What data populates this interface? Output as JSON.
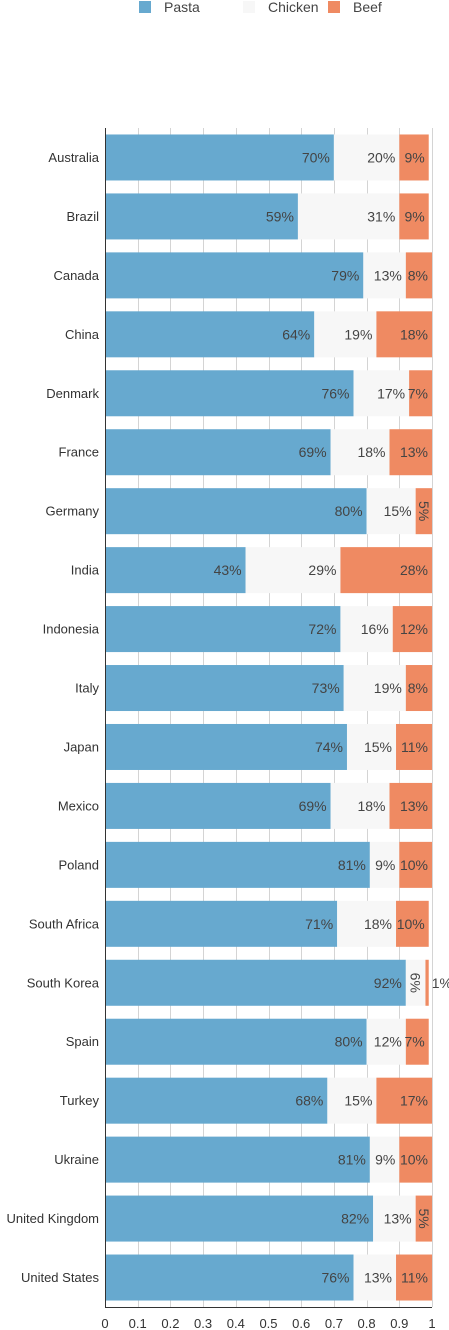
{
  "chart_data": {
    "type": "bar",
    "orientation": "horizontal",
    "stacked": true,
    "categories": [
      "Australia",
      "Brazil",
      "Canada",
      "China",
      "Denmark",
      "France",
      "Germany",
      "India",
      "Indonesia",
      "Italy",
      "Japan",
      "Mexico",
      "Poland",
      "South Africa",
      "South Korea",
      "Spain",
      "Turkey",
      "Ukraine",
      "United Kingdom",
      "United States"
    ],
    "series": [
      {
        "name": "Pasta",
        "color": "#67a9cf",
        "values": [
          0.7,
          0.59,
          0.79,
          0.64,
          0.76,
          0.69,
          0.8,
          0.43,
          0.72,
          0.73,
          0.74,
          0.69,
          0.81,
          0.71,
          0.92,
          0.8,
          0.68,
          0.81,
          0.82,
          0.76
        ],
        "labels": [
          "70%",
          "59%",
          "79%",
          "64%",
          "76%",
          "69%",
          "80%",
          "43%",
          "72%",
          "73%",
          "74%",
          "69%",
          "81%",
          "71%",
          "92%",
          "80%",
          "68%",
          "81%",
          "82%",
          "76%"
        ]
      },
      {
        "name": "Chicken",
        "color": "#f7f7f7",
        "values": [
          0.2,
          0.31,
          0.13,
          0.19,
          0.17,
          0.18,
          0.15,
          0.29,
          0.16,
          0.19,
          0.15,
          0.18,
          0.09,
          0.18,
          0.06,
          0.12,
          0.15,
          0.09,
          0.13,
          0.13
        ],
        "labels": [
          "20%",
          "31%",
          "13%",
          "19%",
          "17%",
          "18%",
          "15%",
          "29%",
          "16%",
          "19%",
          "15%",
          "18%",
          "9%",
          "18%",
          "6%",
          "12%",
          "15%",
          "9%",
          "13%",
          "13%"
        ]
      },
      {
        "name": "Beef",
        "color": "#ef8a62",
        "values": [
          0.09,
          0.09,
          0.08,
          0.18,
          0.07,
          0.13,
          0.05,
          0.28,
          0.12,
          0.08,
          0.11,
          0.13,
          0.1,
          0.1,
          0.01,
          0.07,
          0.17,
          0.1,
          0.05,
          0.11
        ],
        "labels": [
          "9%",
          "9%",
          "8%",
          "18%",
          "7%",
          "13%",
          "5%",
          "28%",
          "12%",
          "8%",
          "11%",
          "13%",
          "10%",
          "10%",
          "1%",
          "7%",
          "17%",
          "10%",
          "5%",
          "11%"
        ]
      }
    ],
    "xlim": [
      0,
      1
    ],
    "xticks": [
      "0",
      "0.1",
      "0.2",
      "0.3",
      "0.4",
      "0.5",
      "0.6",
      "0.7",
      "0.8",
      "0.9",
      "1"
    ],
    "grid": true,
    "legend_position": "top"
  }
}
